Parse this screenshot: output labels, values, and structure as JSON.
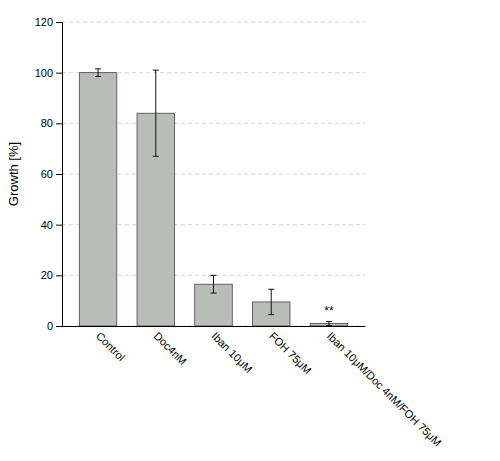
{
  "chart_data": {
    "type": "bar",
    "categories": [
      "Control",
      "Doc4nM",
      "Iban 10μM",
      "FOH 75μM",
      "Iban 10μM/Doc 4nM/FOH 75μM"
    ],
    "values": [
      100.0,
      84.0,
      16.5,
      9.5,
      1.0
    ],
    "errors": [
      1.5,
      17.0,
      3.5,
      5.0,
      0.8
    ],
    "significance": [
      null,
      null,
      null,
      null,
      "**"
    ],
    "color": "#b8bdb8",
    "ylabel": "Growth [%]",
    "ylim": [
      0,
      120
    ],
    "yticks": [
      0,
      20,
      40,
      60,
      80,
      100,
      120
    ],
    "grid": true
  }
}
